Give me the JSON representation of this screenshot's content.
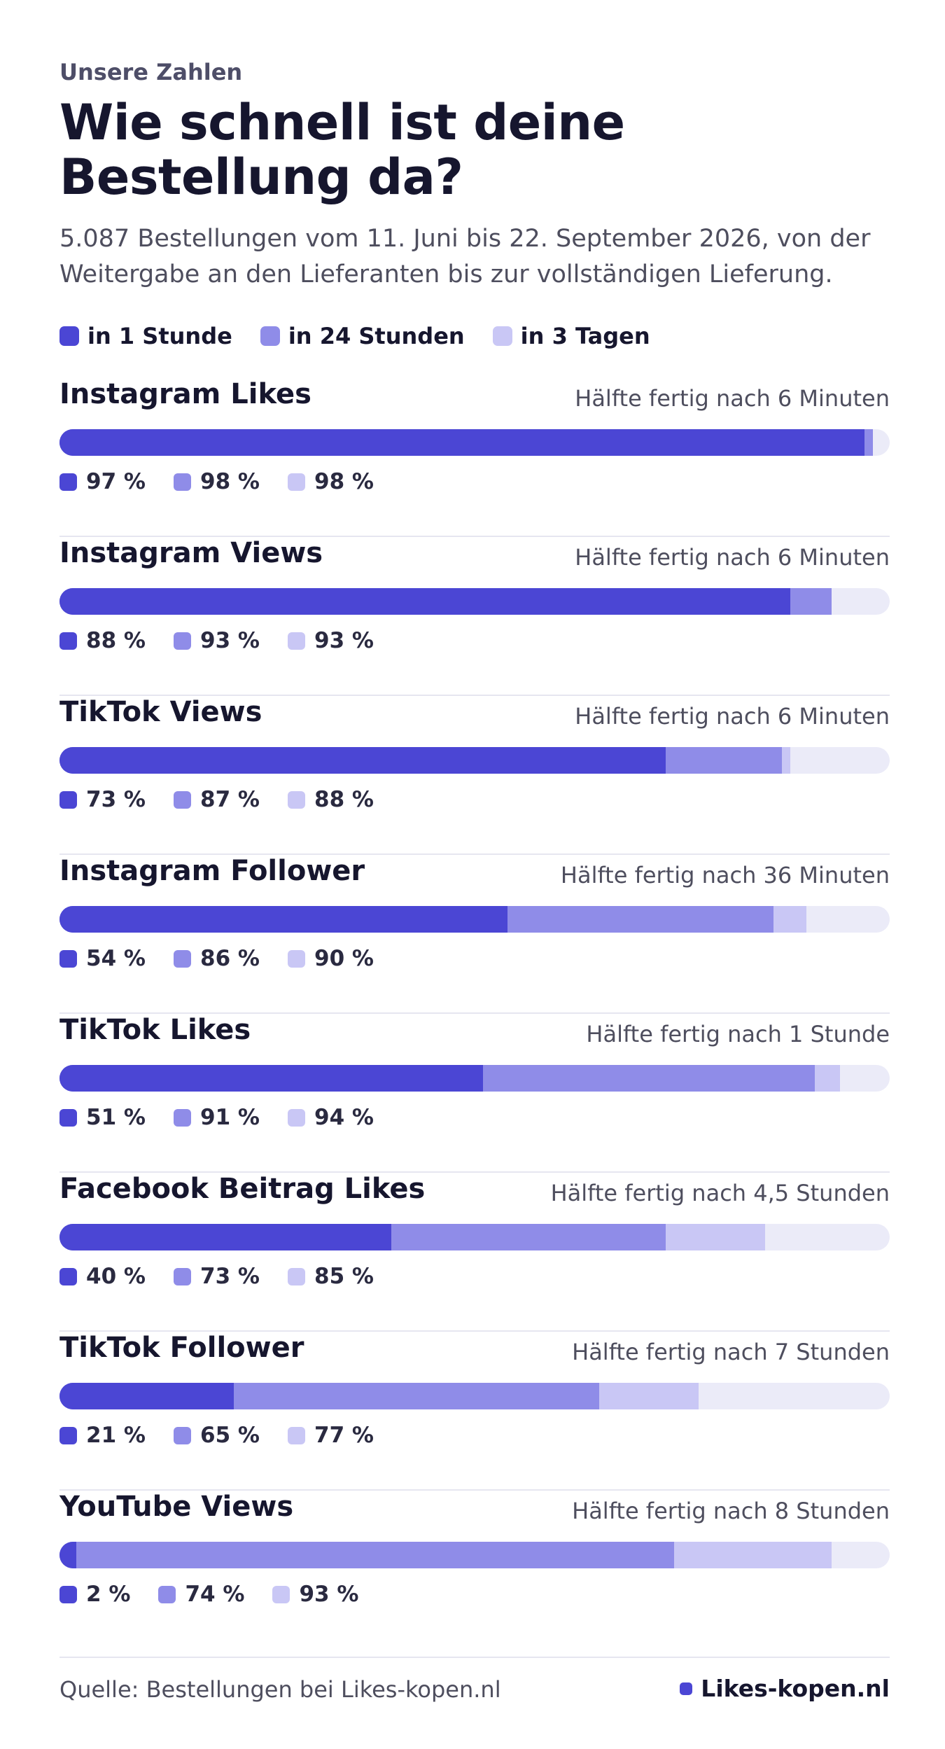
{
  "header": {
    "eyebrow": "Unsere Zahlen",
    "title": "Wie schnell ist deine Bestellung da?",
    "subtitle": "5.087 Bestellungen vom 11. Juni bis 22. September 2026, von der Weitergabe an den Lieferanten bis zur vollständigen Lieferung."
  },
  "colors": {
    "hour": "#4b46d4",
    "day": "#8f8ce8",
    "three_days": "#c9c7f5",
    "track": "#ebebf8",
    "divider": "#e6e6f0"
  },
  "footer": {
    "source": "Quelle: Bestellungen bei Likes-kopen.nl",
    "brand": "Likes-kopen.nl"
  },
  "chart_data": {
    "type": "bar",
    "orientation": "horizontal",
    "stacked_cumulative": true,
    "legend": [
      "in 1 Stunde",
      "in 24 Stunden",
      "in 3 Tagen"
    ],
    "legend_placement": "top-left",
    "xlim": [
      0,
      100
    ],
    "unit": "%",
    "categories": [
      "Instagram Likes",
      "Instagram Views",
      "TikTok Views",
      "Instagram Follower",
      "TikTok Likes",
      "Facebook Beitrag Likes",
      "TikTok Follower",
      "YouTube Views"
    ],
    "notes": [
      "Hälfte fertig nach 6 Minuten",
      "Hälfte fertig nach 6 Minuten",
      "Hälfte fertig nach 6 Minuten",
      "Hälfte fertig nach 36 Minuten",
      "Hälfte fertig nach 1 Stunde",
      "Hälfte fertig nach 4,5 Stunden",
      "Hälfte fertig nach 7 Stunden",
      "Hälfte fertig nach 8 Stunden"
    ],
    "series": [
      {
        "name": "in 1 Stunde",
        "values": [
          97,
          88,
          73,
          54,
          51,
          40,
          21,
          2
        ]
      },
      {
        "name": "in 24 Stunden",
        "values": [
          98,
          93,
          87,
          86,
          91,
          73,
          65,
          74
        ]
      },
      {
        "name": "in 3 Tagen",
        "values": [
          98,
          93,
          88,
          90,
          94,
          85,
          77,
          93
        ]
      }
    ],
    "value_labels": [
      [
        "97 %",
        "98 %",
        "98 %"
      ],
      [
        "88 %",
        "93 %",
        "93 %"
      ],
      [
        "73 %",
        "87 %",
        "88 %"
      ],
      [
        "54 %",
        "86 %",
        "90 %"
      ],
      [
        "51 %",
        "91 %",
        "94 %"
      ],
      [
        "40 %",
        "73 %",
        "85 %"
      ],
      [
        "21 %",
        "65 %",
        "77 %"
      ],
      [
        "2 %",
        "74 %",
        "93 %"
      ]
    ]
  }
}
